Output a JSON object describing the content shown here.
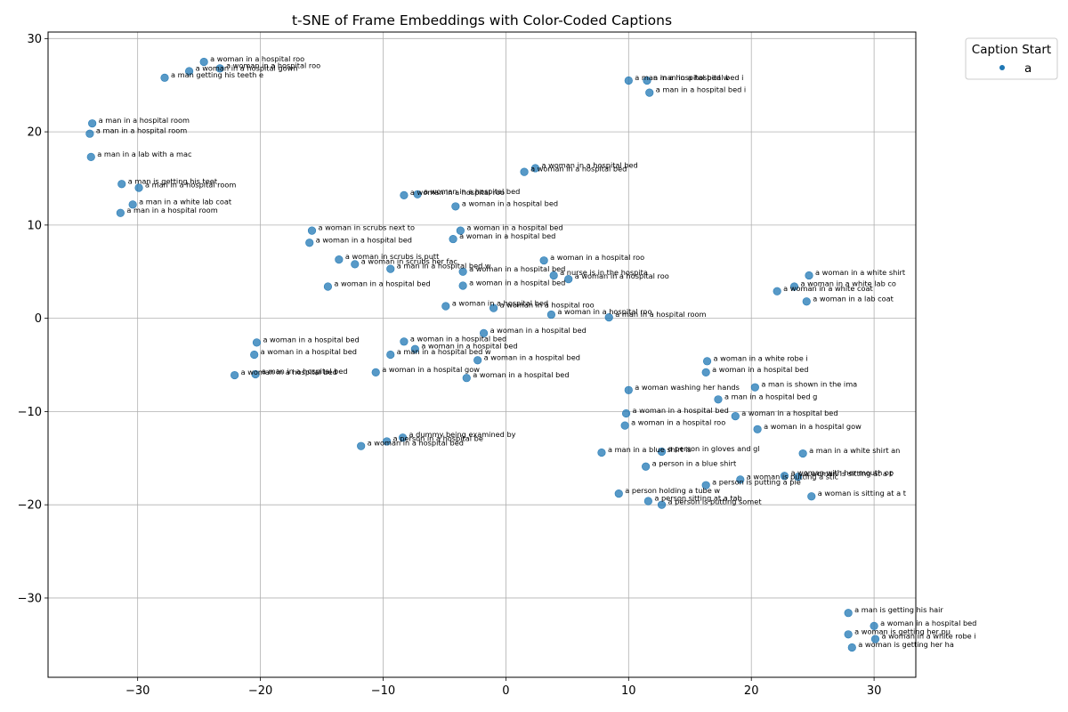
{
  "chart_data": {
    "type": "scatter",
    "title": "t-SNE of Frame Embeddings with Color-Coded Captions",
    "xlabel": "",
    "ylabel": "",
    "xlim": [
      -37.3,
      33.4
    ],
    "ylim": [
      -38.5,
      30.7
    ],
    "xticks": [
      -30,
      -20,
      -10,
      0,
      10,
      20,
      30
    ],
    "yticks": [
      -30,
      -20,
      -10,
      0,
      10,
      20,
      30
    ],
    "grid": true,
    "point_color": "#1f77b4",
    "legend": {
      "title": "Caption Start",
      "position": "upper-right-outside",
      "entries": [
        {
          "label": "a",
          "color": "#1f77b4"
        }
      ]
    },
    "points": [
      {
        "x": -24.6,
        "y": 27.5,
        "label": "a woman in a hospital roo"
      },
      {
        "x": -23.3,
        "y": 26.8,
        "label": "a woman in a hospital roo"
      },
      {
        "x": -25.8,
        "y": 26.5,
        "label": "a woman in a hospital gown"
      },
      {
        "x": -27.8,
        "y": 25.8,
        "label": "a man getting his teeth e"
      },
      {
        "x": -33.7,
        "y": 20.9,
        "label": "a man in a hospital room"
      },
      {
        "x": -33.9,
        "y": 19.8,
        "label": "a man in a hospital room"
      },
      {
        "x": -33.8,
        "y": 17.3,
        "label": "a man in a lab with a mac"
      },
      {
        "x": -31.3,
        "y": 14.4,
        "label": "a man is getting his teet"
      },
      {
        "x": -29.9,
        "y": 14.0,
        "label": "a man in a hospital room"
      },
      {
        "x": -30.4,
        "y": 12.2,
        "label": "a man in a white lab coat"
      },
      {
        "x": -31.4,
        "y": 11.3,
        "label": "a man in a hospital room"
      },
      {
        "x": 10.0,
        "y": 25.5,
        "label": "a man in a hospital bed w"
      },
      {
        "x": 11.5,
        "y": 25.5,
        "label": "a man in a hospital bed i"
      },
      {
        "x": 11.7,
        "y": 24.2,
        "label": "a man in a hospital bed i"
      },
      {
        "x": 2.4,
        "y": 16.1,
        "label": "a woman in a hospital bed"
      },
      {
        "x": 1.5,
        "y": 15.7,
        "label": "a woman in a hospital bed"
      },
      {
        "x": -8.3,
        "y": 13.2,
        "label": "a woman in a hospital roo"
      },
      {
        "x": -7.2,
        "y": 13.3,
        "label": "a woman in a hospital bed"
      },
      {
        "x": -4.1,
        "y": 12.0,
        "label": "a woman in a hospital bed"
      },
      {
        "x": -15.8,
        "y": 9.4,
        "label": "a woman in scrubs next to"
      },
      {
        "x": -3.7,
        "y": 9.4,
        "label": "a woman in a hospital bed"
      },
      {
        "x": -16.0,
        "y": 8.1,
        "label": "a woman in a hospital bed"
      },
      {
        "x": -4.3,
        "y": 8.5,
        "label": "a woman in a hospital bed"
      },
      {
        "x": -13.6,
        "y": 6.3,
        "label": "a woman in scrubs is putt"
      },
      {
        "x": -12.3,
        "y": 5.8,
        "label": "a woman in scrubs her fac"
      },
      {
        "x": -9.4,
        "y": 5.3,
        "label": "a man in a hospital bed w"
      },
      {
        "x": -3.5,
        "y": 5.0,
        "label": "a woman in a hospital bed"
      },
      {
        "x": 3.1,
        "y": 6.2,
        "label": "a woman in a hospital roo"
      },
      {
        "x": 3.9,
        "y": 4.6,
        "label": "a nurse is in the hospita"
      },
      {
        "x": 5.1,
        "y": 4.2,
        "label": "a woman in a hospital roo"
      },
      {
        "x": -14.5,
        "y": 3.4,
        "label": "a woman in a hospital bed"
      },
      {
        "x": -3.5,
        "y": 3.5,
        "label": "a woman in a hospital bed"
      },
      {
        "x": -4.9,
        "y": 1.3,
        "label": "a woman in a hospital bed"
      },
      {
        "x": -1.0,
        "y": 1.1,
        "label": "a woman in a hospital roo"
      },
      {
        "x": 3.7,
        "y": 0.4,
        "label": "a woman in a hospital roo"
      },
      {
        "x": 8.4,
        "y": 0.1,
        "label": "a man in a hospital room"
      },
      {
        "x": 24.7,
        "y": 4.6,
        "label": "a woman in a white shirt"
      },
      {
        "x": 23.5,
        "y": 3.4,
        "label": "a woman in a white lab co"
      },
      {
        "x": 22.1,
        "y": 2.9,
        "label": "a woman in a white coat"
      },
      {
        "x": 24.5,
        "y": 1.8,
        "label": "a woman in a lab coat"
      },
      {
        "x": -1.8,
        "y": -1.6,
        "label": "a woman in a hospital bed"
      },
      {
        "x": -20.3,
        "y": -2.6,
        "label": "a woman in a hospital bed"
      },
      {
        "x": -8.3,
        "y": -2.5,
        "label": "a woman in a hospital bed"
      },
      {
        "x": -7.4,
        "y": -3.3,
        "label": "a woman in a hospital bed"
      },
      {
        "x": -20.5,
        "y": -3.9,
        "label": "a woman in a hospital bed"
      },
      {
        "x": -9.4,
        "y": -3.9,
        "label": "a man in a hospital bed w"
      },
      {
        "x": -2.3,
        "y": -4.5,
        "label": "a woman in a hospital bed"
      },
      {
        "x": -22.1,
        "y": -6.1,
        "label": "a woman in a hospital bed"
      },
      {
        "x": -20.4,
        "y": -6.0,
        "label": "a man in a hospital bed"
      },
      {
        "x": -10.6,
        "y": -5.8,
        "label": "a woman in a hospital gow"
      },
      {
        "x": -3.2,
        "y": -6.4,
        "label": "a woman in a hospital bed"
      },
      {
        "x": 16.4,
        "y": -4.6,
        "label": "a woman in a white robe i"
      },
      {
        "x": 16.3,
        "y": -5.8,
        "label": "a woman in a hospital bed"
      },
      {
        "x": 20.3,
        "y": -7.4,
        "label": "a man is shown in the ima"
      },
      {
        "x": 10.0,
        "y": -7.7,
        "label": "a woman washing her hands"
      },
      {
        "x": 17.3,
        "y": -8.7,
        "label": "a man in a hospital bed g"
      },
      {
        "x": 9.8,
        "y": -10.2,
        "label": "a woman in a hospital bed"
      },
      {
        "x": 18.7,
        "y": -10.5,
        "label": "a woman in a hospital bed"
      },
      {
        "x": 9.7,
        "y": -11.5,
        "label": "a woman in a hospital roo"
      },
      {
        "x": 20.5,
        "y": -11.9,
        "label": "a woman in a hospital gow"
      },
      {
        "x": -8.4,
        "y": -12.8,
        "label": "a dummy being examined by"
      },
      {
        "x": -9.7,
        "y": -13.2,
        "label": "a person in a hospital be"
      },
      {
        "x": -11.8,
        "y": -13.7,
        "label": "a woman in a hospital bed"
      },
      {
        "x": 7.8,
        "y": -14.4,
        "label": "a man in a blue shirt is"
      },
      {
        "x": 12.7,
        "y": -14.3,
        "label": "a person in gloves and gl"
      },
      {
        "x": 24.2,
        "y": -14.5,
        "label": "a man in a white shirt an"
      },
      {
        "x": 11.4,
        "y": -15.9,
        "label": "a person in a blue shirt"
      },
      {
        "x": 22.7,
        "y": -16.9,
        "label": "a woman with her mouth op"
      },
      {
        "x": 23.8,
        "y": -17.0,
        "label": "a woman is sitting at a t"
      },
      {
        "x": 19.1,
        "y": -17.3,
        "label": "a woman is putting a stic"
      },
      {
        "x": 16.3,
        "y": -17.9,
        "label": "a person is putting a pie"
      },
      {
        "x": 9.2,
        "y": -18.8,
        "label": "a person holding a tube w"
      },
      {
        "x": 24.9,
        "y": -19.1,
        "label": "a woman is sitting at a t"
      },
      {
        "x": 11.6,
        "y": -19.6,
        "label": "a person sitting at a tab"
      },
      {
        "x": 12.7,
        "y": -20.0,
        "label": "a person is putting somet"
      },
      {
        "x": 27.9,
        "y": -31.6,
        "label": "a man is getting his hair"
      },
      {
        "x": 30.0,
        "y": -33.0,
        "label": "a woman in a hospital bed"
      },
      {
        "x": 27.9,
        "y": -33.9,
        "label": "a woman is getting her pu"
      },
      {
        "x": 30.1,
        "y": -34.4,
        "label": "a woman in a white robe i"
      },
      {
        "x": 28.2,
        "y": -35.3,
        "label": "a woman is getting her ha"
      }
    ]
  }
}
